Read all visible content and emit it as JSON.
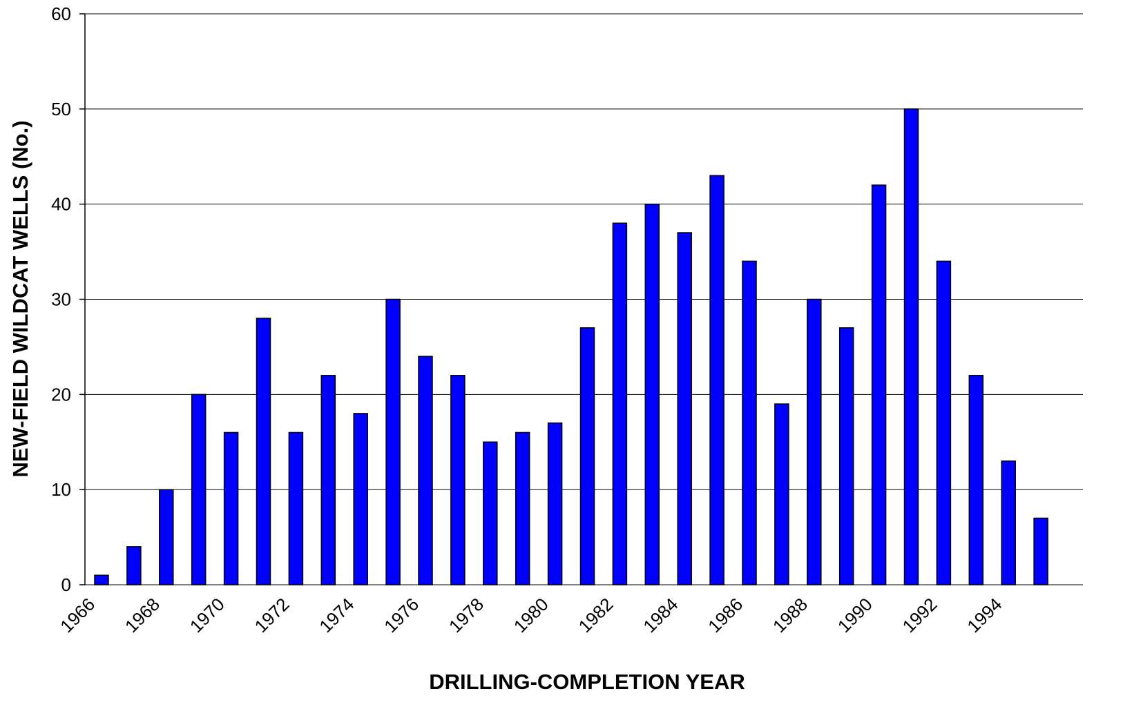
{
  "chart_data": {
    "type": "bar",
    "x_label": "DRILLING-COMPLETION YEAR",
    "y_label": "NEW-FIELD WILDCAT WELLS (No.)",
    "categories": [
      "1966",
      null,
      "1968",
      null,
      "1970",
      null,
      "1972",
      null,
      "1974",
      null,
      "1976",
      null,
      "1978",
      null,
      "1980",
      null,
      "1982",
      null,
      "1984",
      null,
      "1986",
      null,
      "1988",
      null,
      "1990",
      null,
      "1992",
      null,
      "1994",
      null
    ],
    "values": [
      1,
      4,
      10,
      20,
      16,
      28,
      16,
      22,
      18,
      30,
      24,
      22,
      15,
      16,
      17,
      27,
      38,
      40,
      37,
      43,
      34,
      19,
      30,
      27,
      42,
      50,
      34,
      22,
      13,
      7
    ],
    "color": "#0000ff",
    "ylim": [
      0,
      60
    ],
    "yticks": [
      0,
      10,
      20,
      30,
      40,
      50,
      60
    ],
    "grid": true
  }
}
